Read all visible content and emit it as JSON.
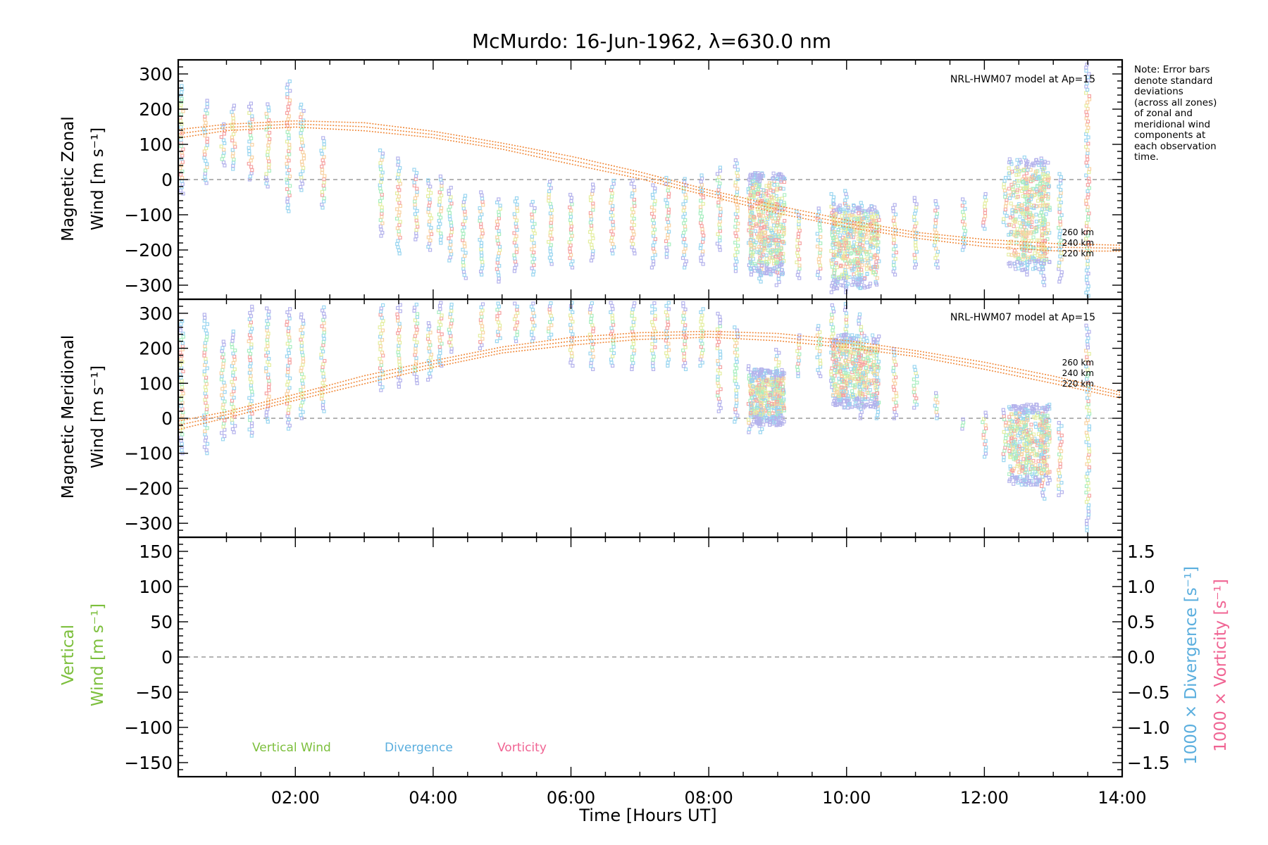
{
  "title": "McMurdo: 16-Jun-1962, λ=630.0 nm",
  "note_lines": [
    "Note: Error bars",
    "denote standard",
    "deviations",
    "(across all zones)",
    "of zonal and",
    "meridional wind",
    "components at",
    "each observation",
    "time."
  ],
  "colors": {
    "model": "#f08a3c",
    "vertical": "#7cbf3c",
    "divergence": "#5aaede",
    "vorticity": "#f06493",
    "scatter": [
      "#b4b2ec",
      "#9ad6f0",
      "#a8eec0",
      "#e4eea0",
      "#f8d2a2",
      "#f6a2a2"
    ]
  },
  "chart_data": [
    {
      "type": "scatter",
      "ylabel_line1": "Magnetic Zonal",
      "ylabel_line2": "Wind [m s⁻¹]",
      "ylim": [
        -340,
        340
      ],
      "yticks": [
        300,
        200,
        100,
        0,
        -100,
        -200,
        -300
      ],
      "ytick_labels": [
        "300",
        "200",
        "100",
        "0",
        "−100",
        "−200",
        "−300"
      ],
      "model_label": "NRL-HWM07 model at Ap=15",
      "altitude_labels": [
        "260 km",
        "240 km",
        "220 km"
      ],
      "model_curve": {
        "x": [
          0.3,
          1.0,
          2.0,
          3.0,
          4.0,
          5.0,
          6.0,
          7.0,
          8.0,
          9.0,
          10.0,
          11.0,
          12.0,
          13.0,
          14.0
        ],
        "y": [
          130,
          148,
          158,
          150,
          128,
          95,
          55,
          12,
          -38,
          -85,
          -125,
          -158,
          -180,
          -192,
          -195
        ]
      },
      "columns": [
        {
          "x": 0.35,
          "lo": -40,
          "hi": 270
        },
        {
          "x": 0.7,
          "lo": -10,
          "hi": 230
        },
        {
          "x": 0.95,
          "lo": 40,
          "hi": 160
        },
        {
          "x": 1.1,
          "lo": 30,
          "hi": 210
        },
        {
          "x": 1.35,
          "lo": 0,
          "hi": 220
        },
        {
          "x": 1.6,
          "lo": -20,
          "hi": 220
        },
        {
          "x": 1.9,
          "lo": -90,
          "hi": 280
        },
        {
          "x": 2.1,
          "lo": -30,
          "hi": 220
        },
        {
          "x": 2.4,
          "lo": -80,
          "hi": 120
        },
        {
          "x": 3.25,
          "lo": -160,
          "hi": 90
        },
        {
          "x": 3.5,
          "lo": -210,
          "hi": 60
        },
        {
          "x": 3.75,
          "lo": -170,
          "hi": 30
        },
        {
          "x": 3.95,
          "lo": -200,
          "hi": 0
        },
        {
          "x": 4.1,
          "lo": -180,
          "hi": 10
        },
        {
          "x": 4.25,
          "lo": -230,
          "hi": -20
        },
        {
          "x": 4.45,
          "lo": -280,
          "hi": -40
        },
        {
          "x": 4.7,
          "lo": -270,
          "hi": -30
        },
        {
          "x": 4.95,
          "lo": -290,
          "hi": -50
        },
        {
          "x": 5.2,
          "lo": -260,
          "hi": -50
        },
        {
          "x": 5.45,
          "lo": -270,
          "hi": -60
        },
        {
          "x": 5.7,
          "lo": -240,
          "hi": 0
        },
        {
          "x": 6.0,
          "lo": -250,
          "hi": -40
        },
        {
          "x": 6.3,
          "lo": -230,
          "hi": -10
        },
        {
          "x": 6.6,
          "lo": -210,
          "hi": 0
        },
        {
          "x": 6.9,
          "lo": -210,
          "hi": 0
        },
        {
          "x": 7.2,
          "lo": -250,
          "hi": -10
        },
        {
          "x": 7.4,
          "lo": -220,
          "hi": 10
        },
        {
          "x": 7.65,
          "lo": -250,
          "hi": 10
        },
        {
          "x": 7.9,
          "lo": -240,
          "hi": 20
        },
        {
          "x": 8.15,
          "lo": -200,
          "hi": 40
        },
        {
          "x": 8.4,
          "lo": -260,
          "hi": 60
        },
        {
          "x": 8.6,
          "lo": -270,
          "hi": 0
        },
        {
          "x": 8.75,
          "lo": -290,
          "hi": -20
        },
        {
          "x": 9.0,
          "lo": -300,
          "hi": -70
        },
        {
          "x": 9.3,
          "lo": -280,
          "hi": -90
        },
        {
          "x": 9.6,
          "lo": -280,
          "hi": -80
        },
        {
          "x": 9.8,
          "lo": -320,
          "hi": -40
        },
        {
          "x": 10.0,
          "lo": -320,
          "hi": -30
        },
        {
          "x": 10.2,
          "lo": -300,
          "hi": -60
        },
        {
          "x": 10.45,
          "lo": -250,
          "hi": -90
        },
        {
          "x": 10.7,
          "lo": -270,
          "hi": -70
        },
        {
          "x": 11.0,
          "lo": -250,
          "hi": -50
        },
        {
          "x": 11.3,
          "lo": -250,
          "hi": -60
        },
        {
          "x": 11.7,
          "lo": -200,
          "hi": -50
        },
        {
          "x": 12.0,
          "lo": -140,
          "hi": -40
        },
        {
          "x": 12.3,
          "lo": -130,
          "hi": 10
        },
        {
          "x": 12.6,
          "lo": -270,
          "hi": 70
        },
        {
          "x": 12.85,
          "lo": -300,
          "hi": 60
        },
        {
          "x": 13.1,
          "lo": -290,
          "hi": 20
        },
        {
          "x": 13.5,
          "lo": -330,
          "hi": 330
        }
      ],
      "clusters": [
        {
          "x0": 8.6,
          "x1": 9.1,
          "lo": -270,
          "hi": 20
        },
        {
          "x0": 9.8,
          "x1": 10.45,
          "lo": -310,
          "hi": -70
        },
        {
          "x0": 12.35,
          "x1": 12.95,
          "lo": -260,
          "hi": 60
        }
      ]
    },
    {
      "type": "scatter",
      "ylabel_line1": "Magnetic Meridional",
      "ylabel_line2": "Wind [m s⁻¹]",
      "ylim": [
        -340,
        340
      ],
      "yticks": [
        300,
        200,
        100,
        0,
        -100,
        -200,
        -300
      ],
      "ytick_labels": [
        "300",
        "200",
        "100",
        "0",
        "−100",
        "−200",
        "−300"
      ],
      "model_label": "NRL-HWM07 model at Ap=15",
      "altitude_labels": [
        "260 km",
        "240 km",
        "220 km"
      ],
      "model_curve": {
        "x": [
          0.3,
          1.0,
          2.0,
          3.0,
          4.0,
          5.0,
          6.0,
          7.0,
          8.0,
          9.0,
          10.0,
          11.0,
          12.0,
          13.0,
          14.0
        ],
        "y": [
          -20,
          10,
          60,
          110,
          155,
          195,
          220,
          235,
          240,
          232,
          212,
          185,
          150,
          110,
          65
        ]
      },
      "columns": [
        {
          "x": 0.35,
          "lo": -100,
          "hi": 280
        },
        {
          "x": 0.7,
          "lo": -100,
          "hi": 300
        },
        {
          "x": 0.95,
          "lo": -60,
          "hi": 220
        },
        {
          "x": 1.1,
          "lo": -40,
          "hi": 250
        },
        {
          "x": 1.35,
          "lo": -50,
          "hi": 320
        },
        {
          "x": 1.6,
          "lo": -10,
          "hi": 320
        },
        {
          "x": 1.9,
          "lo": -30,
          "hi": 320
        },
        {
          "x": 2.1,
          "lo": 0,
          "hi": 300
        },
        {
          "x": 2.4,
          "lo": 20,
          "hi": 320
        },
        {
          "x": 3.25,
          "lo": 80,
          "hi": 330
        },
        {
          "x": 3.5,
          "lo": 90,
          "hi": 330
        },
        {
          "x": 3.75,
          "lo": 100,
          "hi": 330
        },
        {
          "x": 3.95,
          "lo": 110,
          "hi": 280
        },
        {
          "x": 4.1,
          "lo": 150,
          "hi": 330
        },
        {
          "x": 4.25,
          "lo": 190,
          "hi": 330
        },
        {
          "x": 4.7,
          "lo": 200,
          "hi": 330
        },
        {
          "x": 4.95,
          "lo": 220,
          "hi": 330
        },
        {
          "x": 5.2,
          "lo": 220,
          "hi": 330
        },
        {
          "x": 5.45,
          "lo": 220,
          "hi": 330
        },
        {
          "x": 5.7,
          "lo": 230,
          "hi": 330
        },
        {
          "x": 6.0,
          "lo": 150,
          "hi": 330
        },
        {
          "x": 6.3,
          "lo": 140,
          "hi": 330
        },
        {
          "x": 6.6,
          "lo": 150,
          "hi": 330
        },
        {
          "x": 6.9,
          "lo": 140,
          "hi": 330
        },
        {
          "x": 7.2,
          "lo": 140,
          "hi": 330
        },
        {
          "x": 7.4,
          "lo": 150,
          "hi": 330
        },
        {
          "x": 7.65,
          "lo": 140,
          "hi": 330
        },
        {
          "x": 7.9,
          "lo": 150,
          "hi": 320
        },
        {
          "x": 8.15,
          "lo": 20,
          "hi": 300
        },
        {
          "x": 8.4,
          "lo": -10,
          "hi": 260
        },
        {
          "x": 8.6,
          "lo": -40,
          "hi": 150
        },
        {
          "x": 8.75,
          "lo": -40,
          "hi": 140
        },
        {
          "x": 9.0,
          "lo": -20,
          "hi": 200
        },
        {
          "x": 9.3,
          "lo": 120,
          "hi": 240
        },
        {
          "x": 9.6,
          "lo": 120,
          "hi": 270
        },
        {
          "x": 9.8,
          "lo": 80,
          "hi": 330
        },
        {
          "x": 10.0,
          "lo": 30,
          "hi": 330
        },
        {
          "x": 10.2,
          "lo": 0,
          "hi": 300
        },
        {
          "x": 10.45,
          "lo": 0,
          "hi": 240
        },
        {
          "x": 10.7,
          "lo": 0,
          "hi": 200
        },
        {
          "x": 11.0,
          "lo": 30,
          "hi": 150
        },
        {
          "x": 11.3,
          "lo": 0,
          "hi": 80
        },
        {
          "x": 11.7,
          "lo": -30,
          "hi": 0
        },
        {
          "x": 12.0,
          "lo": -110,
          "hi": 20
        },
        {
          "x": 12.3,
          "lo": -120,
          "hi": 30
        },
        {
          "x": 12.6,
          "lo": -190,
          "hi": 40
        },
        {
          "x": 12.85,
          "lo": -230,
          "hi": 20
        },
        {
          "x": 13.1,
          "lo": -220,
          "hi": -10
        },
        {
          "x": 13.5,
          "lo": -320,
          "hi": 270
        }
      ],
      "clusters": [
        {
          "x0": 8.6,
          "x1": 9.1,
          "lo": -20,
          "hi": 140
        },
        {
          "x0": 9.8,
          "x1": 10.45,
          "lo": 30,
          "hi": 240
        },
        {
          "x0": 12.35,
          "x1": 12.95,
          "lo": -190,
          "hi": 40
        }
      ]
    },
    {
      "type": "line",
      "xlabel": "Time [Hours UT]",
      "ylabel_line1": "Vertical",
      "ylabel_line2": "Wind [m s⁻¹]",
      "ylim": [
        -170,
        170
      ],
      "yticks": [
        150,
        100,
        50,
        0,
        -50,
        -100,
        -150
      ],
      "ytick_labels": [
        "150",
        "100",
        "50",
        "0",
        "−50",
        "−100",
        "−150"
      ],
      "y2lim": [
        -1.7,
        1.7
      ],
      "y2ticks": [
        1.5,
        1.0,
        0.5,
        0.0,
        -0.5,
        -1.0,
        -1.5
      ],
      "y2tick_labels": [
        "1.5",
        "1.0",
        "0.5",
        "0.0",
        "−0.5",
        "−1.0",
        "−1.5"
      ],
      "y2label_divergence": "1000 × Divergence [s⁻¹]",
      "y2label_vorticity": "1000 × Vorticity [s⁻¹]",
      "legend": [
        "Vertical Wind",
        "Divergence",
        "Vorticity"
      ],
      "xlim": [
        0.3,
        14.0
      ],
      "xticks": [
        2,
        4,
        6,
        8,
        10,
        12,
        14
      ],
      "xtick_labels": [
        "02:00",
        "04:00",
        "06:00",
        "08:00",
        "10:00",
        "12:00",
        "14:00"
      ]
    }
  ]
}
